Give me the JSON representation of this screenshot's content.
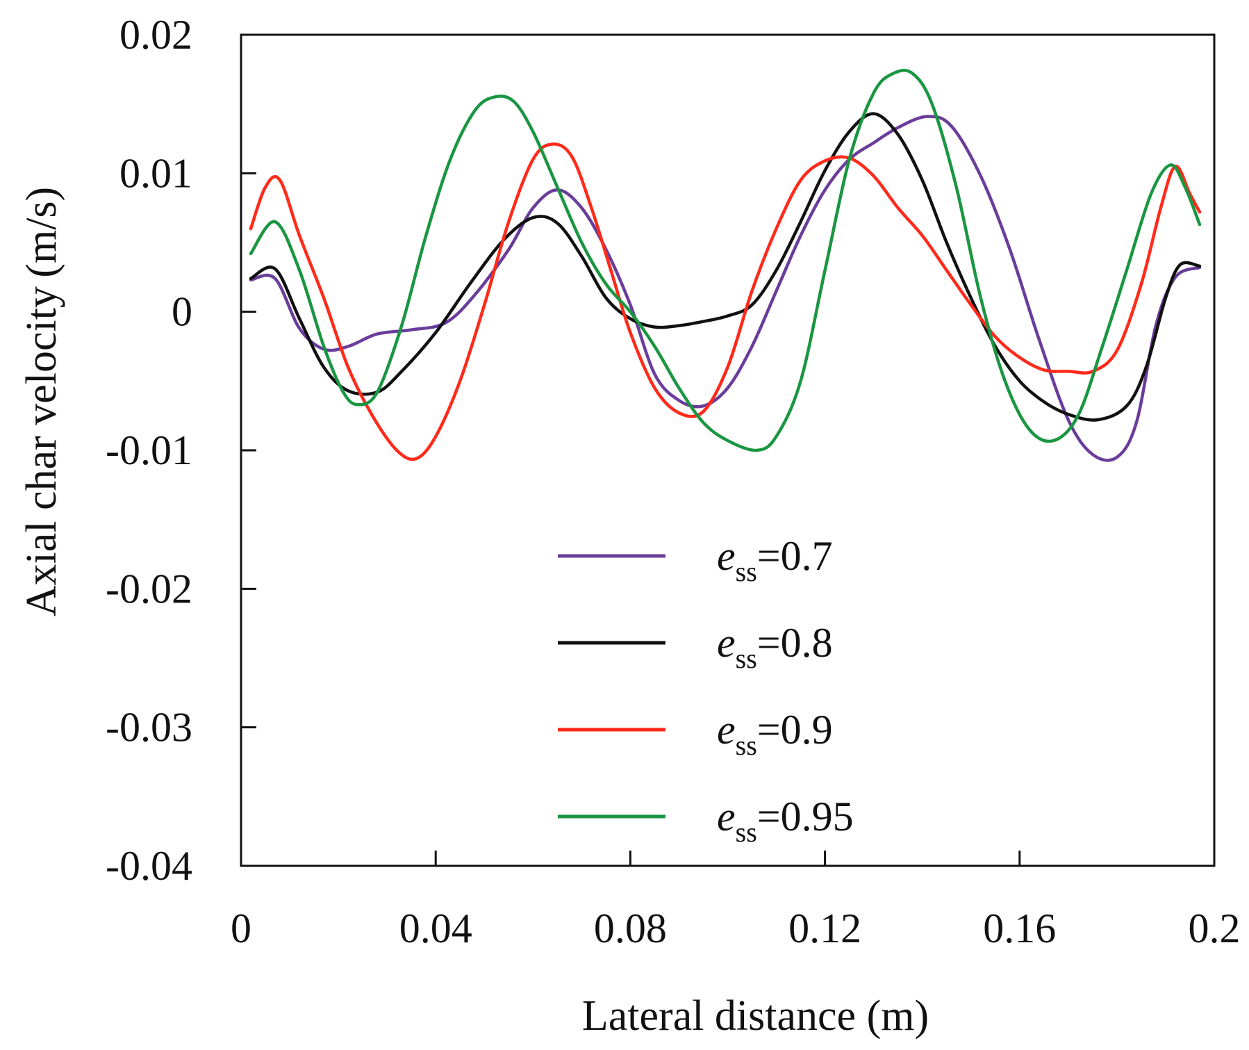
{
  "chart_data": {
    "type": "line",
    "title": "",
    "xlabel": "Lateral distance (m)",
    "ylabel": "Axial char velocity (m/s)",
    "xlim": [
      0,
      0.2
    ],
    "ylim": [
      -0.04,
      0.02
    ],
    "xticks": [
      0,
      0.04,
      0.08,
      0.12,
      0.16,
      0.2
    ],
    "xtick_labels": [
      "0",
      "0.04",
      "0.08",
      "0.12",
      "0.16",
      "0.2"
    ],
    "yticks": [
      0.02,
      0.01,
      0,
      -0.01,
      -0.02,
      -0.03,
      -0.04
    ],
    "ytick_labels": [
      "0.02",
      "0.01",
      "0",
      "-0.01",
      "-0.02",
      "-0.03",
      "-0.04"
    ],
    "grid": false,
    "legend_position": "lower-center",
    "series": [
      {
        "name": "ess=0.7",
        "label_prefix": "e",
        "label_sub": "ss",
        "label_value": "=0.7",
        "color": "#6a3d9a",
        "points": [
          [
            0.002,
            0.0023
          ],
          [
            0.007,
            0.0024
          ],
          [
            0.012,
            -0.0012
          ],
          [
            0.017,
            -0.0027
          ],
          [
            0.022,
            -0.0025
          ],
          [
            0.028,
            -0.0016
          ],
          [
            0.035,
            -0.0013
          ],
          [
            0.042,
            -0.0008
          ],
          [
            0.048,
            0.0012
          ],
          [
            0.055,
            0.0045
          ],
          [
            0.06,
            0.0075
          ],
          [
            0.065,
            0.0088
          ],
          [
            0.07,
            0.0075
          ],
          [
            0.075,
            0.0045
          ],
          [
            0.08,
            0.0005
          ],
          [
            0.085,
            -0.0045
          ],
          [
            0.09,
            -0.0064
          ],
          [
            0.095,
            -0.0068
          ],
          [
            0.1,
            -0.0055
          ],
          [
            0.105,
            -0.0025
          ],
          [
            0.11,
            0.0015
          ],
          [
            0.115,
            0.0055
          ],
          [
            0.12,
            0.0088
          ],
          [
            0.125,
            0.011
          ],
          [
            0.13,
            0.0122
          ],
          [
            0.135,
            0.0133
          ],
          [
            0.141,
            0.0141
          ],
          [
            0.146,
            0.0134
          ],
          [
            0.152,
            0.0098
          ],
          [
            0.158,
            0.0045
          ],
          [
            0.164,
            -0.002
          ],
          [
            0.17,
            -0.0078
          ],
          [
            0.175,
            -0.0103
          ],
          [
            0.18,
            -0.0105
          ],
          [
            0.184,
            -0.008
          ],
          [
            0.188,
            -0.001
          ],
          [
            0.192,
            0.0025
          ],
          [
            0.197,
            0.0032
          ]
        ]
      },
      {
        "name": "ess=0.8",
        "label_prefix": "e",
        "label_sub": "ss",
        "label_value": "=0.8",
        "color": "#111111",
        "points": [
          [
            0.002,
            0.0024
          ],
          [
            0.007,
            0.0031
          ],
          [
            0.012,
            -0.0005
          ],
          [
            0.017,
            -0.004
          ],
          [
            0.022,
            -0.0057
          ],
          [
            0.028,
            -0.0058
          ],
          [
            0.033,
            -0.0043
          ],
          [
            0.04,
            -0.0015
          ],
          [
            0.047,
            0.002
          ],
          [
            0.054,
            0.0052
          ],
          [
            0.06,
            0.0068
          ],
          [
            0.065,
            0.0064
          ],
          [
            0.07,
            0.004
          ],
          [
            0.075,
            0.001
          ],
          [
            0.08,
            -0.0005
          ],
          [
            0.085,
            -0.0011
          ],
          [
            0.09,
            -0.001
          ],
          [
            0.095,
            -0.0007
          ],
          [
            0.1,
            -0.0003
          ],
          [
            0.105,
            0.0005
          ],
          [
            0.11,
            0.003
          ],
          [
            0.115,
            0.0065
          ],
          [
            0.12,
            0.0102
          ],
          [
            0.125,
            0.013
          ],
          [
            0.13,
            0.0143
          ],
          [
            0.135,
            0.0128
          ],
          [
            0.14,
            0.0095
          ],
          [
            0.145,
            0.005
          ],
          [
            0.15,
            0.001
          ],
          [
            0.155,
            -0.0025
          ],
          [
            0.16,
            -0.005
          ],
          [
            0.165,
            -0.0065
          ],
          [
            0.17,
            -0.0074
          ],
          [
            0.176,
            -0.0078
          ],
          [
            0.182,
            -0.0068
          ],
          [
            0.186,
            -0.004
          ],
          [
            0.19,
            0.001
          ],
          [
            0.193,
            0.0034
          ],
          [
            0.197,
            0.0033
          ]
        ]
      },
      {
        "name": "ess=0.9",
        "label_prefix": "e",
        "label_sub": "ss",
        "label_value": "=0.9",
        "color": "#ff2a1a",
        "points": [
          [
            0.002,
            0.006
          ],
          [
            0.005,
            0.009
          ],
          [
            0.008,
            0.0095
          ],
          [
            0.012,
            0.0055
          ],
          [
            0.017,
            0.001
          ],
          [
            0.022,
            -0.004
          ],
          [
            0.027,
            -0.0075
          ],
          [
            0.032,
            -0.01
          ],
          [
            0.036,
            -0.0106
          ],
          [
            0.04,
            -0.009
          ],
          [
            0.045,
            -0.005
          ],
          [
            0.05,
            0.0005
          ],
          [
            0.055,
            0.0065
          ],
          [
            0.06,
            0.011
          ],
          [
            0.064,
            0.0121
          ],
          [
            0.068,
            0.0112
          ],
          [
            0.072,
            0.0075
          ],
          [
            0.076,
            0.003
          ],
          [
            0.08,
            -0.0015
          ],
          [
            0.085,
            -0.0055
          ],
          [
            0.09,
            -0.0073
          ],
          [
            0.095,
            -0.0072
          ],
          [
            0.1,
            -0.004
          ],
          [
            0.105,
            0.0015
          ],
          [
            0.11,
            0.006
          ],
          [
            0.115,
            0.0095
          ],
          [
            0.12,
            0.0109
          ],
          [
            0.125,
            0.0111
          ],
          [
            0.13,
            0.0098
          ],
          [
            0.135,
            0.0075
          ],
          [
            0.14,
            0.0055
          ],
          [
            0.145,
            0.003
          ],
          [
            0.15,
            0.0005
          ],
          [
            0.155,
            -0.0018
          ],
          [
            0.16,
            -0.0033
          ],
          [
            0.165,
            -0.0042
          ],
          [
            0.17,
            -0.0043
          ],
          [
            0.175,
            -0.0043
          ],
          [
            0.18,
            -0.0028
          ],
          [
            0.185,
            0.002
          ],
          [
            0.189,
            0.0075
          ],
          [
            0.192,
            0.0105
          ],
          [
            0.195,
            0.0085
          ],
          [
            0.197,
            0.0072
          ]
        ]
      },
      {
        "name": "ess=0.95",
        "label_prefix": "e",
        "label_sub": "ss",
        "label_value": "=0.95",
        "color": "#1a9641",
        "points": [
          [
            0.002,
            0.0042
          ],
          [
            0.007,
            0.0065
          ],
          [
            0.012,
            0.003
          ],
          [
            0.017,
            -0.0025
          ],
          [
            0.021,
            -0.0058
          ],
          [
            0.024,
            -0.0067
          ],
          [
            0.028,
            -0.0058
          ],
          [
            0.033,
            -0.001
          ],
          [
            0.038,
            0.0055
          ],
          [
            0.043,
            0.011
          ],
          [
            0.048,
            0.0145
          ],
          [
            0.052,
            0.0155
          ],
          [
            0.056,
            0.0152
          ],
          [
            0.06,
            0.013
          ],
          [
            0.065,
            0.009
          ],
          [
            0.07,
            0.005
          ],
          [
            0.075,
            0.002
          ],
          [
            0.08,
            0.0
          ],
          [
            0.085,
            -0.0025
          ],
          [
            0.09,
            -0.0055
          ],
          [
            0.095,
            -0.008
          ],
          [
            0.1,
            -0.0093
          ],
          [
            0.106,
            -0.01
          ],
          [
            0.11,
            -0.009
          ],
          [
            0.115,
            -0.005
          ],
          [
            0.12,
            0.003
          ],
          [
            0.125,
            0.011
          ],
          [
            0.13,
            0.0158
          ],
          [
            0.134,
            0.0172
          ],
          [
            0.138,
            0.0172
          ],
          [
            0.142,
            0.015
          ],
          [
            0.147,
            0.009
          ],
          [
            0.152,
            0.001
          ],
          [
            0.157,
            -0.005
          ],
          [
            0.162,
            -0.0085
          ],
          [
            0.167,
            -0.0093
          ],
          [
            0.172,
            -0.0075
          ],
          [
            0.177,
            -0.0025
          ],
          [
            0.182,
            0.003
          ],
          [
            0.187,
            0.0085
          ],
          [
            0.191,
            0.0106
          ],
          [
            0.194,
            0.009
          ],
          [
            0.197,
            0.0063
          ]
        ]
      }
    ]
  }
}
